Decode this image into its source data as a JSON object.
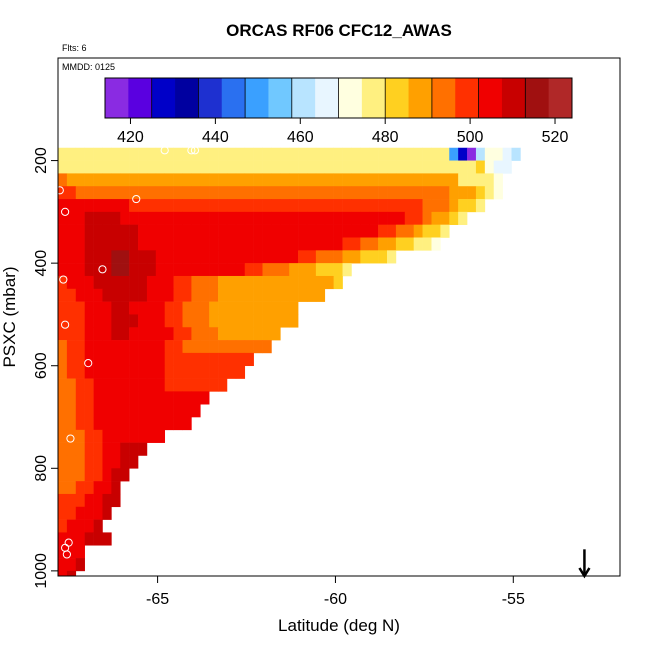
{
  "chart_data": {
    "type": "heatmap",
    "title": "ORCAS RF06 CFC12_AWAS",
    "notes": [
      "Flts: 6",
      "MMDD: 0125"
    ],
    "xlabel": "Latitude (deg N)",
    "ylabel": "PSXC (mbar)",
    "xlim": [
      -67.8,
      -52.0
    ],
    "ylim": [
      1010,
      0
    ],
    "x_ticks": [
      -65,
      -60,
      -55
    ],
    "y_ticks": [
      200,
      400,
      600,
      800,
      1000
    ],
    "x_tick_labels": [
      "-65",
      "-60",
      "-55"
    ],
    "y_tick_labels": [
      "200",
      "400",
      "600",
      "800",
      "1000"
    ],
    "colorbar": {
      "min": 414,
      "max": 524,
      "ticks": [
        420,
        440,
        460,
        480,
        500,
        520
      ],
      "tick_labels": [
        "420",
        "440",
        "460",
        "480",
        "500",
        "520"
      ],
      "colors": [
        "#8a2be2",
        "#5a00e0",
        "#0000c8",
        "#0000a0",
        "#1e30d0",
        "#2a70f0",
        "#3aa0ff",
        "#70c8ff",
        "#b8e4ff",
        "#e8f6ff",
        "#ffffe0",
        "#fff080",
        "#ffd020",
        "#ffa000",
        "#ff7000",
        "#ff3000",
        "#f00000",
        "#c80000",
        "#a01010",
        "#b02828"
      ]
    },
    "cell_size": {
      "dlat": 0.25,
      "dp": 25
    },
    "rows": [
      {
        "p": 187.5,
        "lat0": -67.8,
        "values": [
          478,
          478,
          478,
          478,
          478,
          478,
          478,
          478,
          478,
          478,
          478,
          478,
          478,
          478,
          478,
          478,
          478,
          478,
          478,
          478,
          478,
          478,
          478,
          478,
          478,
          478,
          478,
          478,
          478,
          478,
          478,
          478,
          478,
          478,
          478,
          478,
          478,
          478,
          478,
          478,
          478,
          478,
          478,
          478,
          448,
          430,
          416,
          462,
          470,
          472,
          464,
          462
        ]
      },
      {
        "p": 212.5,
        "lat0": -67.8,
        "values": [
          476,
          476,
          476,
          476,
          476,
          476,
          476,
          476,
          476,
          476,
          476,
          476,
          476,
          476,
          476,
          476,
          476,
          476,
          476,
          476,
          476,
          476,
          476,
          476,
          476,
          476,
          476,
          476,
          476,
          476,
          476,
          476,
          476,
          476,
          476,
          476,
          476,
          476,
          476,
          476,
          476,
          476,
          476,
          476,
          476,
          476,
          478,
          480,
          470,
          468,
          466
        ]
      },
      {
        "p": 237.5,
        "lat0": -67.8,
        "values": [
          492,
          490,
          490,
          490,
          488,
          488,
          488,
          488,
          488,
          488,
          488,
          488,
          488,
          488,
          488,
          488,
          488,
          488,
          488,
          488,
          488,
          488,
          488,
          488,
          488,
          488,
          488,
          488,
          488,
          488,
          488,
          488,
          488,
          488,
          488,
          488,
          488,
          488,
          488,
          488,
          488,
          488,
          488,
          488,
          488,
          476,
          478,
          478,
          476,
          470
        ]
      },
      {
        "p": 262.5,
        "lat0": -67.8,
        "values": [
          498,
          498,
          496,
          496,
          494,
          494,
          494,
          494,
          494,
          494,
          494,
          494,
          494,
          494,
          494,
          494,
          494,
          494,
          494,
          494,
          494,
          494,
          494,
          494,
          494,
          494,
          494,
          494,
          494,
          494,
          494,
          494,
          494,
          494,
          494,
          494,
          494,
          494,
          494,
          494,
          494,
          494,
          492,
          492,
          490,
          488,
          486,
          482,
          478,
          472
        ]
      },
      {
        "p": 287.5,
        "lat0": -67.8,
        "values": [
          506,
          506,
          506,
          504,
          504,
          502,
          502,
          502,
          500,
          500,
          500,
          500,
          500,
          500,
          500,
          500,
          500,
          500,
          500,
          500,
          500,
          500,
          500,
          500,
          500,
          500,
          500,
          500,
          500,
          500,
          500,
          500,
          500,
          500,
          500,
          500,
          500,
          500,
          500,
          498,
          498,
          496,
          494,
          492,
          488,
          484,
          480,
          476
        ]
      },
      {
        "p": 312.5,
        "lat0": -67.8,
        "values": [
          504,
          506,
          506,
          510,
          510,
          508,
          508,
          506,
          506,
          506,
          506,
          506,
          506,
          506,
          506,
          506,
          506,
          506,
          506,
          506,
          506,
          506,
          506,
          506,
          506,
          506,
          506,
          506,
          506,
          506,
          506,
          506,
          506,
          506,
          506,
          506,
          506,
          504,
          502,
          500,
          498,
          494,
          490,
          486,
          482,
          478
        ]
      },
      {
        "p": 337.5,
        "lat0": -67.8,
        "values": [
          502,
          504,
          506,
          510,
          510,
          510,
          510,
          508,
          508,
          506,
          506,
          506,
          506,
          506,
          506,
          506,
          506,
          506,
          506,
          506,
          506,
          506,
          506,
          506,
          506,
          506,
          506,
          506,
          506,
          506,
          506,
          506,
          506,
          504,
          504,
          502,
          500,
          498,
          496,
          492,
          488,
          484,
          480,
          476
        ]
      },
      {
        "p": 362.5,
        "lat0": -67.8,
        "values": [
          502,
          504,
          506,
          508,
          510,
          512,
          512,
          510,
          508,
          506,
          506,
          506,
          506,
          506,
          506,
          506,
          506,
          506,
          506,
          506,
          506,
          506,
          506,
          506,
          506,
          506,
          506,
          506,
          506,
          506,
          504,
          502,
          500,
          498,
          496,
          494,
          490,
          486,
          484,
          480,
          478,
          476,
          474
        ]
      },
      {
        "p": 387.5,
        "lat0": -67.8,
        "values": [
          502,
          504,
          506,
          508,
          510,
          512,
          514,
          514,
          512,
          510,
          508,
          506,
          506,
          506,
          506,
          506,
          506,
          506,
          506,
          506,
          506,
          506,
          506,
          506,
          506,
          504,
          502,
          500,
          498,
          496,
          494,
          492,
          490,
          486,
          484,
          482,
          480,
          478
        ]
      },
      {
        "p": 412.5,
        "lat0": -67.8,
        "values": [
          502,
          504,
          506,
          508,
          510,
          512,
          514,
          514,
          512,
          510,
          508,
          506,
          506,
          506,
          506,
          506,
          506,
          506,
          506,
          504,
          502,
          500,
          498,
          496,
          494,
          492,
          490,
          488,
          486,
          484,
          482,
          480,
          478
        ]
      },
      {
        "p": 437.5,
        "lat0": -67.8,
        "values": [
          500,
          502,
          504,
          506,
          508,
          510,
          512,
          512,
          510,
          508,
          506,
          504,
          502,
          500,
          498,
          496,
          494,
          492,
          490,
          490,
          490,
          490,
          490,
          490,
          490,
          490,
          490,
          490,
          490,
          488,
          486,
          484
        ]
      },
      {
        "p": 462.5,
        "lat0": -67.8,
        "values": [
          500,
          500,
          502,
          504,
          506,
          508,
          510,
          510,
          510,
          508,
          506,
          504,
          502,
          500,
          498,
          496,
          494,
          492,
          490,
          490,
          490,
          490,
          490,
          490,
          490,
          490,
          490,
          490,
          490,
          490
        ]
      },
      {
        "p": 487.5,
        "lat0": -67.8,
        "values": [
          498,
          500,
          500,
          502,
          504,
          506,
          508,
          508,
          506,
          506,
          504,
          502,
          500,
          498,
          496,
          494,
          492,
          490,
          488,
          488,
          488,
          488,
          488,
          488,
          488,
          488,
          488
        ]
      },
      {
        "p": 512.5,
        "lat0": -67.8,
        "values": [
          498,
          500,
          500,
          502,
          504,
          506,
          508,
          508,
          508,
          506,
          504,
          502,
          500,
          498,
          496,
          494,
          492,
          490,
          490,
          490,
          490,
          490,
          490,
          490,
          490,
          490,
          490
        ]
      },
      {
        "p": 537.5,
        "lat0": -67.8,
        "values": [
          498,
          498,
          500,
          502,
          504,
          506,
          508,
          508,
          506,
          506,
          504,
          504,
          502,
          500,
          498,
          496,
          494,
          492,
          490,
          490,
          490,
          490,
          490,
          490,
          490
        ]
      },
      {
        "p": 562.5,
        "lat0": -67.8,
        "values": [
          496,
          498,
          500,
          502,
          504,
          506,
          506,
          506,
          506,
          504,
          502,
          502,
          500,
          498,
          496,
          494,
          492,
          492,
          492,
          492,
          492,
          492,
          492,
          492
        ]
      },
      {
        "p": 587.5,
        "lat0": -67.8,
        "values": [
          496,
          498,
          500,
          502,
          504,
          504,
          504,
          504,
          504,
          504,
          502,
          502,
          500,
          500,
          500,
          500,
          500,
          500,
          500,
          500,
          500,
          500
        ]
      },
      {
        "p": 612.5,
        "lat0": -67.8,
        "values": [
          496,
          498,
          500,
          502,
          502,
          504,
          504,
          504,
          504,
          504,
          502,
          502,
          500,
          500,
          500,
          500,
          500,
          500,
          500,
          500,
          500
        ]
      },
      {
        "p": 637.5,
        "lat0": -67.8,
        "values": [
          496,
          496,
          498,
          500,
          502,
          504,
          504,
          504,
          504,
          504,
          502,
          502,
          500,
          500,
          500,
          500,
          500,
          500,
          500
        ]
      },
      {
        "p": 662.5,
        "lat0": -67.8,
        "values": [
          496,
          496,
          498,
          500,
          502,
          504,
          504,
          504,
          504,
          504,
          502,
          502,
          502,
          502,
          502,
          502,
          502
        ]
      },
      {
        "p": 687.5,
        "lat0": -67.8,
        "values": [
          494,
          496,
          498,
          500,
          502,
          504,
          504,
          504,
          504,
          504,
          504,
          504,
          504,
          504,
          504,
          504
        ]
      },
      {
        "p": 712.5,
        "lat0": -67.8,
        "values": [
          494,
          496,
          498,
          500,
          502,
          504,
          504,
          504,
          504,
          504,
          504,
          504,
          504,
          504,
          504
        ]
      },
      {
        "p": 737.5,
        "lat0": -67.8,
        "values": [
          494,
          496,
          496,
          498,
          500,
          502,
          504,
          506,
          506,
          506,
          506,
          506
        ]
      },
      {
        "p": 762.5,
        "lat0": -67.8,
        "values": [
          494,
          496,
          496,
          498,
          500,
          502,
          504,
          508,
          508,
          508
        ]
      },
      {
        "p": 787.5,
        "lat0": -67.8,
        "values": [
          494,
          494,
          496,
          498,
          500,
          504,
          506,
          512,
          512
        ]
      },
      {
        "p": 812.5,
        "lat0": -67.8,
        "values": [
          494,
          494,
          496,
          498,
          500,
          504,
          508,
          510
        ]
      },
      {
        "p": 837.5,
        "lat0": -67.8,
        "values": [
          496,
          496,
          498,
          500,
          502,
          506,
          508
        ]
      },
      {
        "p": 862.5,
        "lat0": -67.8,
        "values": [
          498,
          498,
          500,
          502,
          504,
          508,
          510
        ]
      },
      {
        "p": 887.5,
        "lat0": -67.8,
        "values": [
          500,
          500,
          502,
          504,
          506,
          508
        ]
      },
      {
        "p": 912.5,
        "lat0": -67.8,
        "values": [
          500,
          502,
          504,
          506,
          508
        ]
      },
      {
        "p": 937.5,
        "lat0": -67.8,
        "values": [
          502,
          504,
          506,
          508,
          510,
          512
        ]
      },
      {
        "p": 962.5,
        "lat0": -67.8,
        "values": [
          502,
          504,
          506
        ]
      },
      {
        "p": 987.5,
        "lat0": -67.8,
        "values": [
          502,
          506,
          508
        ]
      },
      {
        "p": 1012.5,
        "lat0": -67.8,
        "values": [
          504,
          508
        ]
      }
    ],
    "points": [
      {
        "lat": -67.75,
        "p": 258
      },
      {
        "lat": -67.6,
        "p": 300
      },
      {
        "lat": -67.65,
        "p": 432
      },
      {
        "lat": -67.6,
        "p": 520
      },
      {
        "lat": -67.45,
        "p": 742
      },
      {
        "lat": -67.5,
        "p": 945
      },
      {
        "lat": -67.6,
        "p": 955
      },
      {
        "lat": -67.55,
        "p": 968
      },
      {
        "lat": -65.6,
        "p": 275
      },
      {
        "lat": -66.55,
        "p": 412
      },
      {
        "lat": -66.95,
        "p": 595
      },
      {
        "lat": -64.8,
        "p": 180
      },
      {
        "lat": -64.05,
        "p": 180
      },
      {
        "lat": -63.95,
        "p": 180
      }
    ],
    "arrow": {
      "lat": -53.0,
      "p_from": 958,
      "p_to": 1010
    }
  }
}
